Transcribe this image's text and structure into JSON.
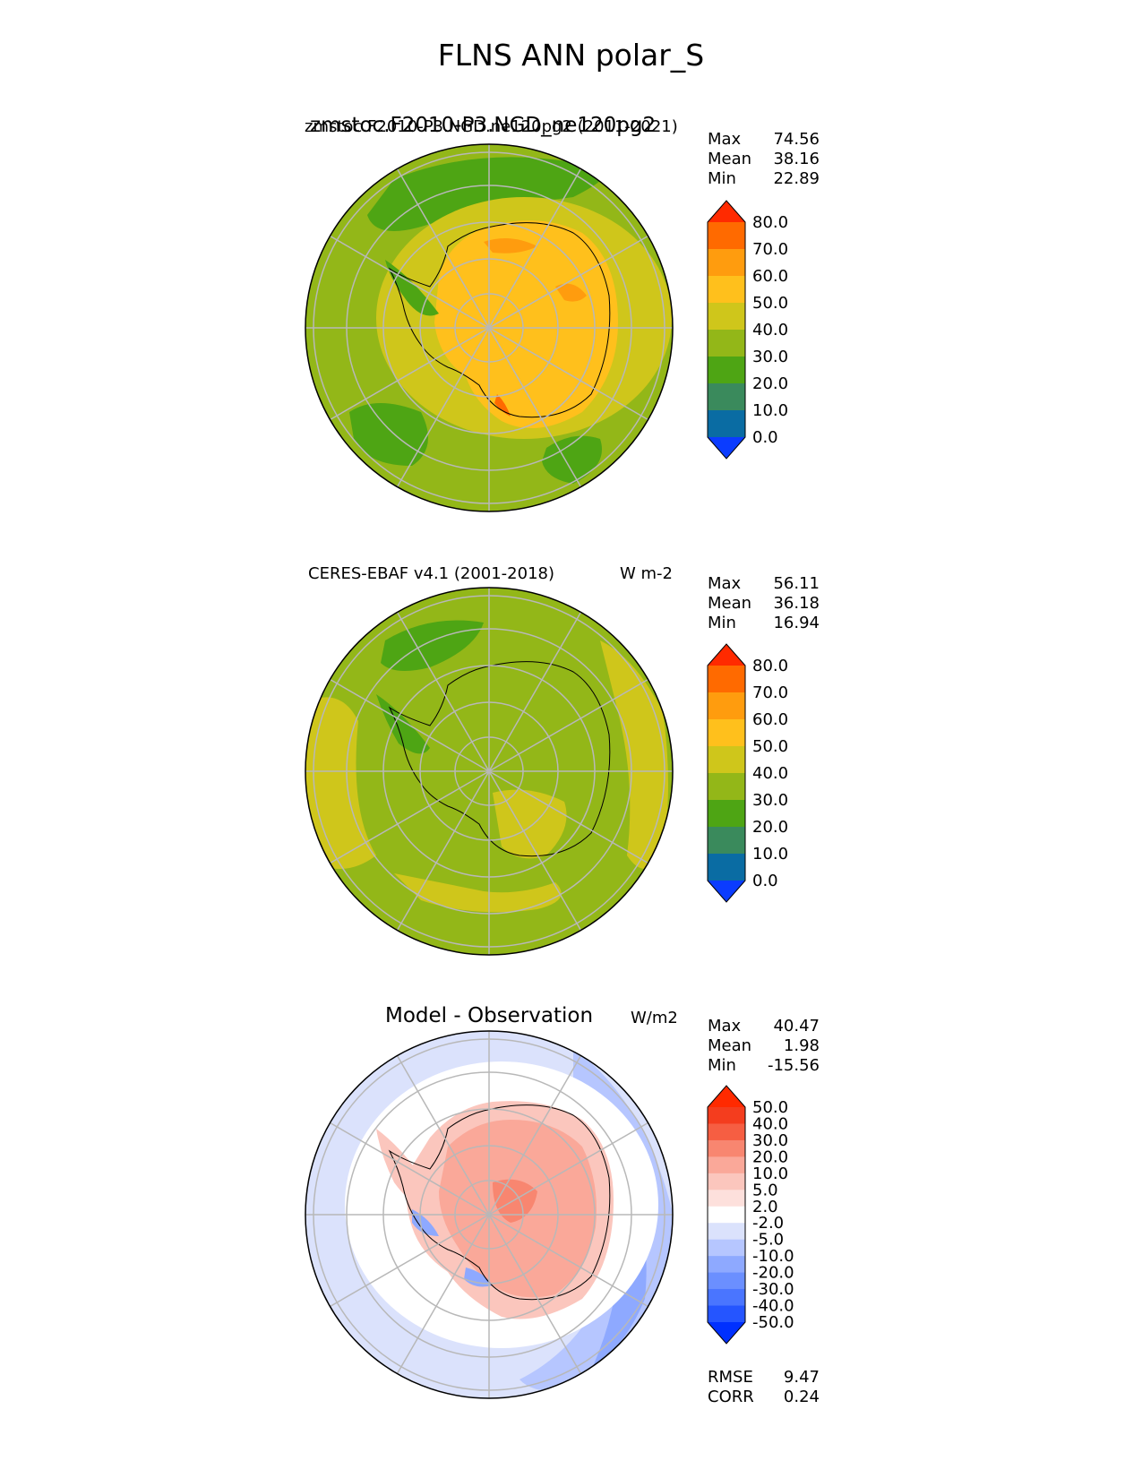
{
  "figure": {
    "title": "FLNS ANN polar_S"
  },
  "panels": [
    {
      "id": "test",
      "left_title": "zmstoc.F2010-P3.NGD.ne120pg2 (2011-2021)",
      "left_title_overlay": "zmstoc.F2010-P3.NGD_ne120pg2",
      "units": "",
      "stats": [
        {
          "label": "Max",
          "value": "74.56"
        },
        {
          "label": "Mean",
          "value": "38.16"
        },
        {
          "label": "Min",
          "value": "22.89"
        }
      ]
    },
    {
      "id": "ref",
      "left_title": "CERES-EBAF v4.1 (2001-2018)",
      "units": "W m-2",
      "stats": [
        {
          "label": "Max",
          "value": "56.11"
        },
        {
          "label": "Mean",
          "value": "36.18"
        },
        {
          "label": "Min",
          "value": "16.94"
        }
      ]
    },
    {
      "id": "diff",
      "center_title": "Model - Observation",
      "units": "W/m2",
      "stats": [
        {
          "label": "Max",
          "value": "40.47"
        },
        {
          "label": "Mean",
          "value": "1.98"
        },
        {
          "label": "Min",
          "value": "-15.56"
        }
      ],
      "metrics": [
        {
          "label": "RMSE",
          "value": "9.47"
        },
        {
          "label": "CORR",
          "value": "0.24"
        }
      ]
    }
  ],
  "colorbars": {
    "field": {
      "ticks": [
        "0.0",
        "10.0",
        "20.0",
        "30.0",
        "40.0",
        "50.0",
        "60.0",
        "70.0",
        "80.0"
      ],
      "colors": [
        "#0b3cff",
        "#0a6ca3",
        "#3a8a5c",
        "#4ea514",
        "#93b718",
        "#cfc61b",
        "#ffc01c",
        "#ff9c0e",
        "#ff6a00",
        "#ff2a00"
      ]
    },
    "diff": {
      "ticks": [
        "-50.0",
        "-40.0",
        "-30.0",
        "-20.0",
        "-10.0",
        "-5.0",
        "-2.0",
        "2.0",
        "5.0",
        "10.0",
        "20.0",
        "30.0",
        "40.0",
        "50.0"
      ],
      "colors": [
        "#0030ff",
        "#2555ff",
        "#4a75ff",
        "#6b8fff",
        "#8ea9ff",
        "#b6c6ff",
        "#dbe2fc",
        "#ffffff",
        "#fde0dc",
        "#fbc6bd",
        "#faa899",
        "#f88670",
        "#f65e42",
        "#f43d1e",
        "#ff2a00"
      ]
    }
  },
  "chart_data": {
    "type": "heatmap",
    "title": "FLNS ANN polar_S",
    "projection": "south polar stereographic",
    "panels": [
      {
        "title": "zmstoc.F2010-P3.NGD.ne120pg2 (2011-2021)",
        "max": 74.56,
        "mean": 38.16,
        "min": 22.89,
        "color_levels": [
          0,
          10,
          20,
          30,
          40,
          50,
          60,
          70,
          80
        ]
      },
      {
        "title": "CERES-EBAF v4.1 (2001-2018)",
        "units": "W m-2",
        "max": 56.11,
        "mean": 36.18,
        "min": 16.94,
        "color_levels": [
          0,
          10,
          20,
          30,
          40,
          50,
          60,
          70,
          80
        ]
      },
      {
        "title": "Model - Observation",
        "units": "W/m2",
        "max": 40.47,
        "mean": 1.98,
        "min": -15.56,
        "rmse": 9.47,
        "corr": 0.24,
        "color_levels": [
          -50,
          -40,
          -30,
          -20,
          -10,
          -5,
          -2,
          2,
          5,
          10,
          20,
          30,
          40,
          50
        ]
      }
    ]
  }
}
